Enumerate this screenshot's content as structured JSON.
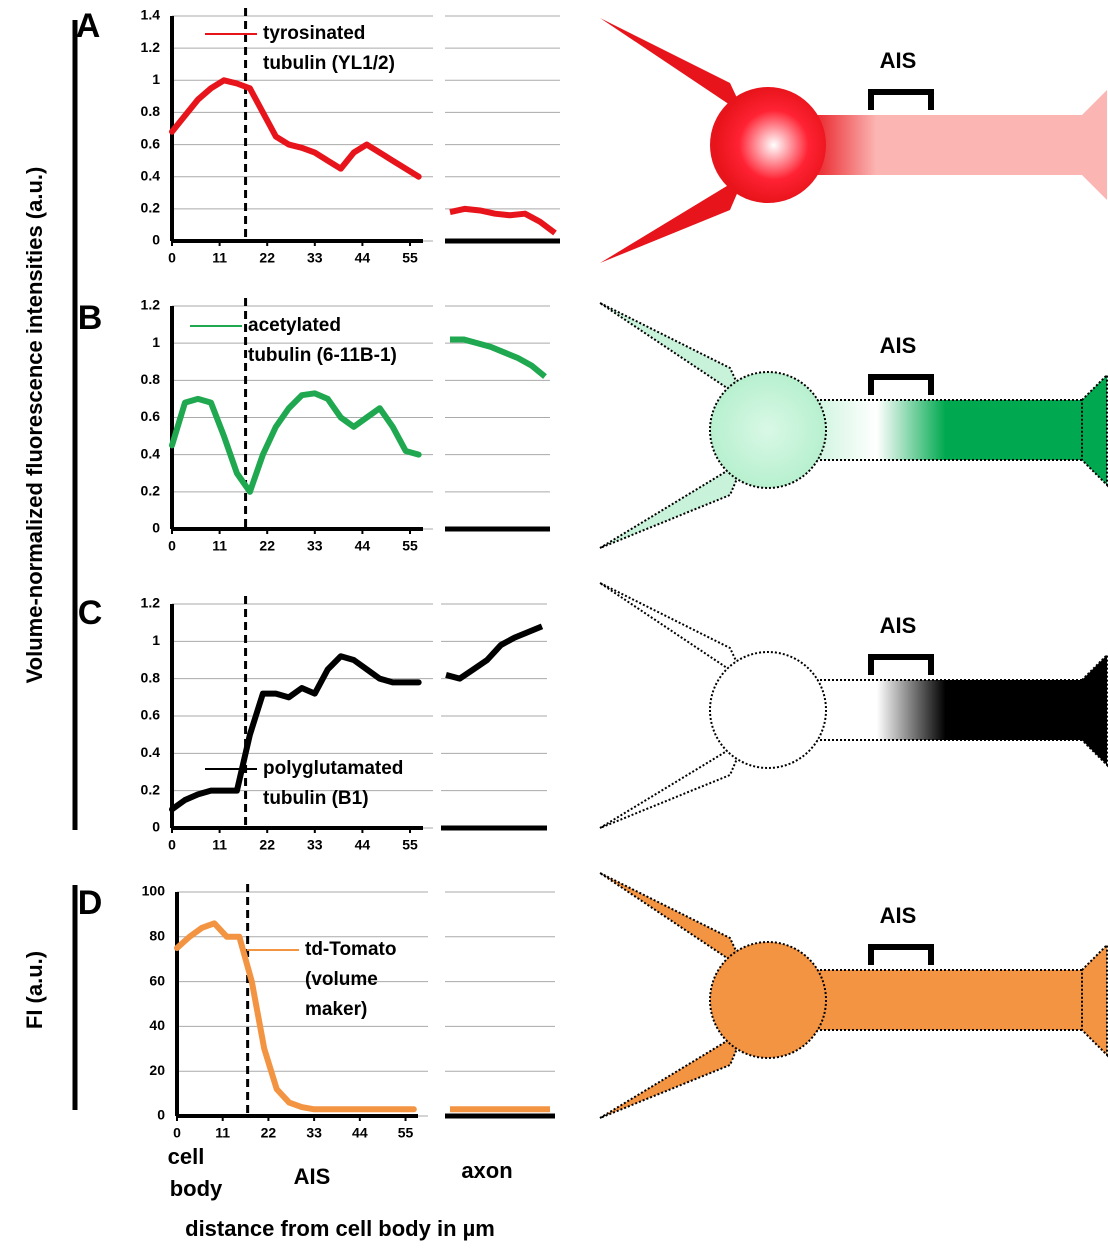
{
  "y_label_main": "Volume-normalized fluorescence intensities (a.u.)",
  "y_label_d": "FI (a.u.)",
  "x_label": "distance from cell body in µm",
  "region_labels": {
    "cell_body": [
      "cell",
      "body"
    ],
    "ais": "AIS",
    "axon": "axon"
  },
  "diagram_labels": [
    "AIS",
    "AIS",
    "AIS",
    "AIS"
  ],
  "chart_data": [
    {
      "type": "line",
      "panel": "A",
      "xlim": [
        0,
        58
      ],
      "xticks": [
        0,
        11,
        22,
        33,
        44,
        55
      ],
      "ylim": [
        0,
        1.4
      ],
      "yticks": [
        0,
        0.2,
        0.4,
        0.6,
        0.8,
        1,
        1.2,
        1.4
      ],
      "divider_x": 17,
      "grid": true,
      "x": [
        0,
        3,
        6,
        9,
        12,
        15,
        18,
        21,
        24,
        27,
        30,
        33,
        36,
        39,
        42,
        45,
        48,
        51,
        54,
        57
      ],
      "series": [
        {
          "name": "tyrosinated tubulin (YL1/2)",
          "color": "#e8141b",
          "values": [
            0.68,
            0.78,
            0.88,
            0.95,
            1.0,
            0.98,
            0.95,
            0.8,
            0.65,
            0.6,
            0.58,
            0.55,
            0.5,
            0.45,
            0.55,
            0.6,
            0.55,
            0.5,
            0.45,
            0.4
          ]
        }
      ],
      "axon_values": [
        0.18,
        0.2,
        0.19,
        0.17,
        0.16,
        0.17,
        0.12,
        0.05
      ]
    },
    {
      "type": "line",
      "panel": "B",
      "xlim": [
        0,
        58
      ],
      "xticks": [
        0,
        11,
        22,
        33,
        44,
        55
      ],
      "ylim": [
        0,
        1.2
      ],
      "yticks": [
        0,
        0.2,
        0.4,
        0.6,
        0.8,
        1,
        1.2
      ],
      "divider_x": 17,
      "grid": true,
      "x": [
        0,
        3,
        6,
        9,
        12,
        15,
        18,
        21,
        24,
        27,
        30,
        33,
        36,
        39,
        42,
        45,
        48,
        51,
        54,
        57
      ],
      "series": [
        {
          "name": "acetylated tubulin (6-11B-1)",
          "color": "#1fa84f",
          "values": [
            0.45,
            0.68,
            0.7,
            0.68,
            0.5,
            0.3,
            0.2,
            0.4,
            0.55,
            0.65,
            0.72,
            0.73,
            0.7,
            0.6,
            0.55,
            0.6,
            0.65,
            0.55,
            0.42,
            0.4
          ]
        }
      ],
      "axon_values": [
        1.02,
        1.02,
        1.0,
        0.98,
        0.95,
        0.92,
        0.88,
        0.82
      ]
    },
    {
      "type": "line",
      "panel": "C",
      "xlim": [
        0,
        58
      ],
      "xticks": [
        0,
        11,
        22,
        33,
        44,
        55
      ],
      "ylim": [
        0,
        1.2
      ],
      "yticks": [
        0,
        0.2,
        0.4,
        0.6,
        0.8,
        1,
        1.2
      ],
      "divider_x": 17,
      "grid": true,
      "x": [
        0,
        3,
        6,
        9,
        12,
        15,
        18,
        21,
        24,
        27,
        30,
        33,
        36,
        39,
        42,
        45,
        48,
        51,
        54,
        57
      ],
      "series": [
        {
          "name": "polyglutamated tubulin (B1)",
          "color": "#000000",
          "values": [
            0.1,
            0.15,
            0.18,
            0.2,
            0.2,
            0.2,
            0.5,
            0.72,
            0.72,
            0.7,
            0.75,
            0.72,
            0.85,
            0.92,
            0.9,
            0.85,
            0.8,
            0.78,
            0.78,
            0.78
          ]
        }
      ],
      "axon_values": [
        0.82,
        0.8,
        0.85,
        0.9,
        0.98,
        1.02,
        1.05,
        1.08
      ]
    },
    {
      "type": "line",
      "panel": "D",
      "xlim": [
        0,
        58
      ],
      "xticks": [
        0,
        11,
        22,
        33,
        44,
        55
      ],
      "ylim": [
        0,
        100
      ],
      "yticks": [
        0,
        20,
        40,
        60,
        80,
        100
      ],
      "divider_x": 17,
      "grid": true,
      "x": [
        0,
        3,
        6,
        9,
        12,
        15,
        18,
        21,
        24,
        27,
        30,
        33,
        36,
        39,
        42,
        45,
        48,
        51,
        54,
        57
      ],
      "series": [
        {
          "name": "td-Tomato (volume maker)",
          "color": "#f39443",
          "values": [
            75,
            80,
            84,
            86,
            80,
            80,
            60,
            30,
            12,
            6,
            4,
            3,
            3,
            3,
            3,
            3,
            3,
            3,
            3,
            3
          ]
        }
      ],
      "axon_values": [
        3,
        3,
        3,
        3,
        3,
        3,
        3,
        3
      ]
    }
  ]
}
